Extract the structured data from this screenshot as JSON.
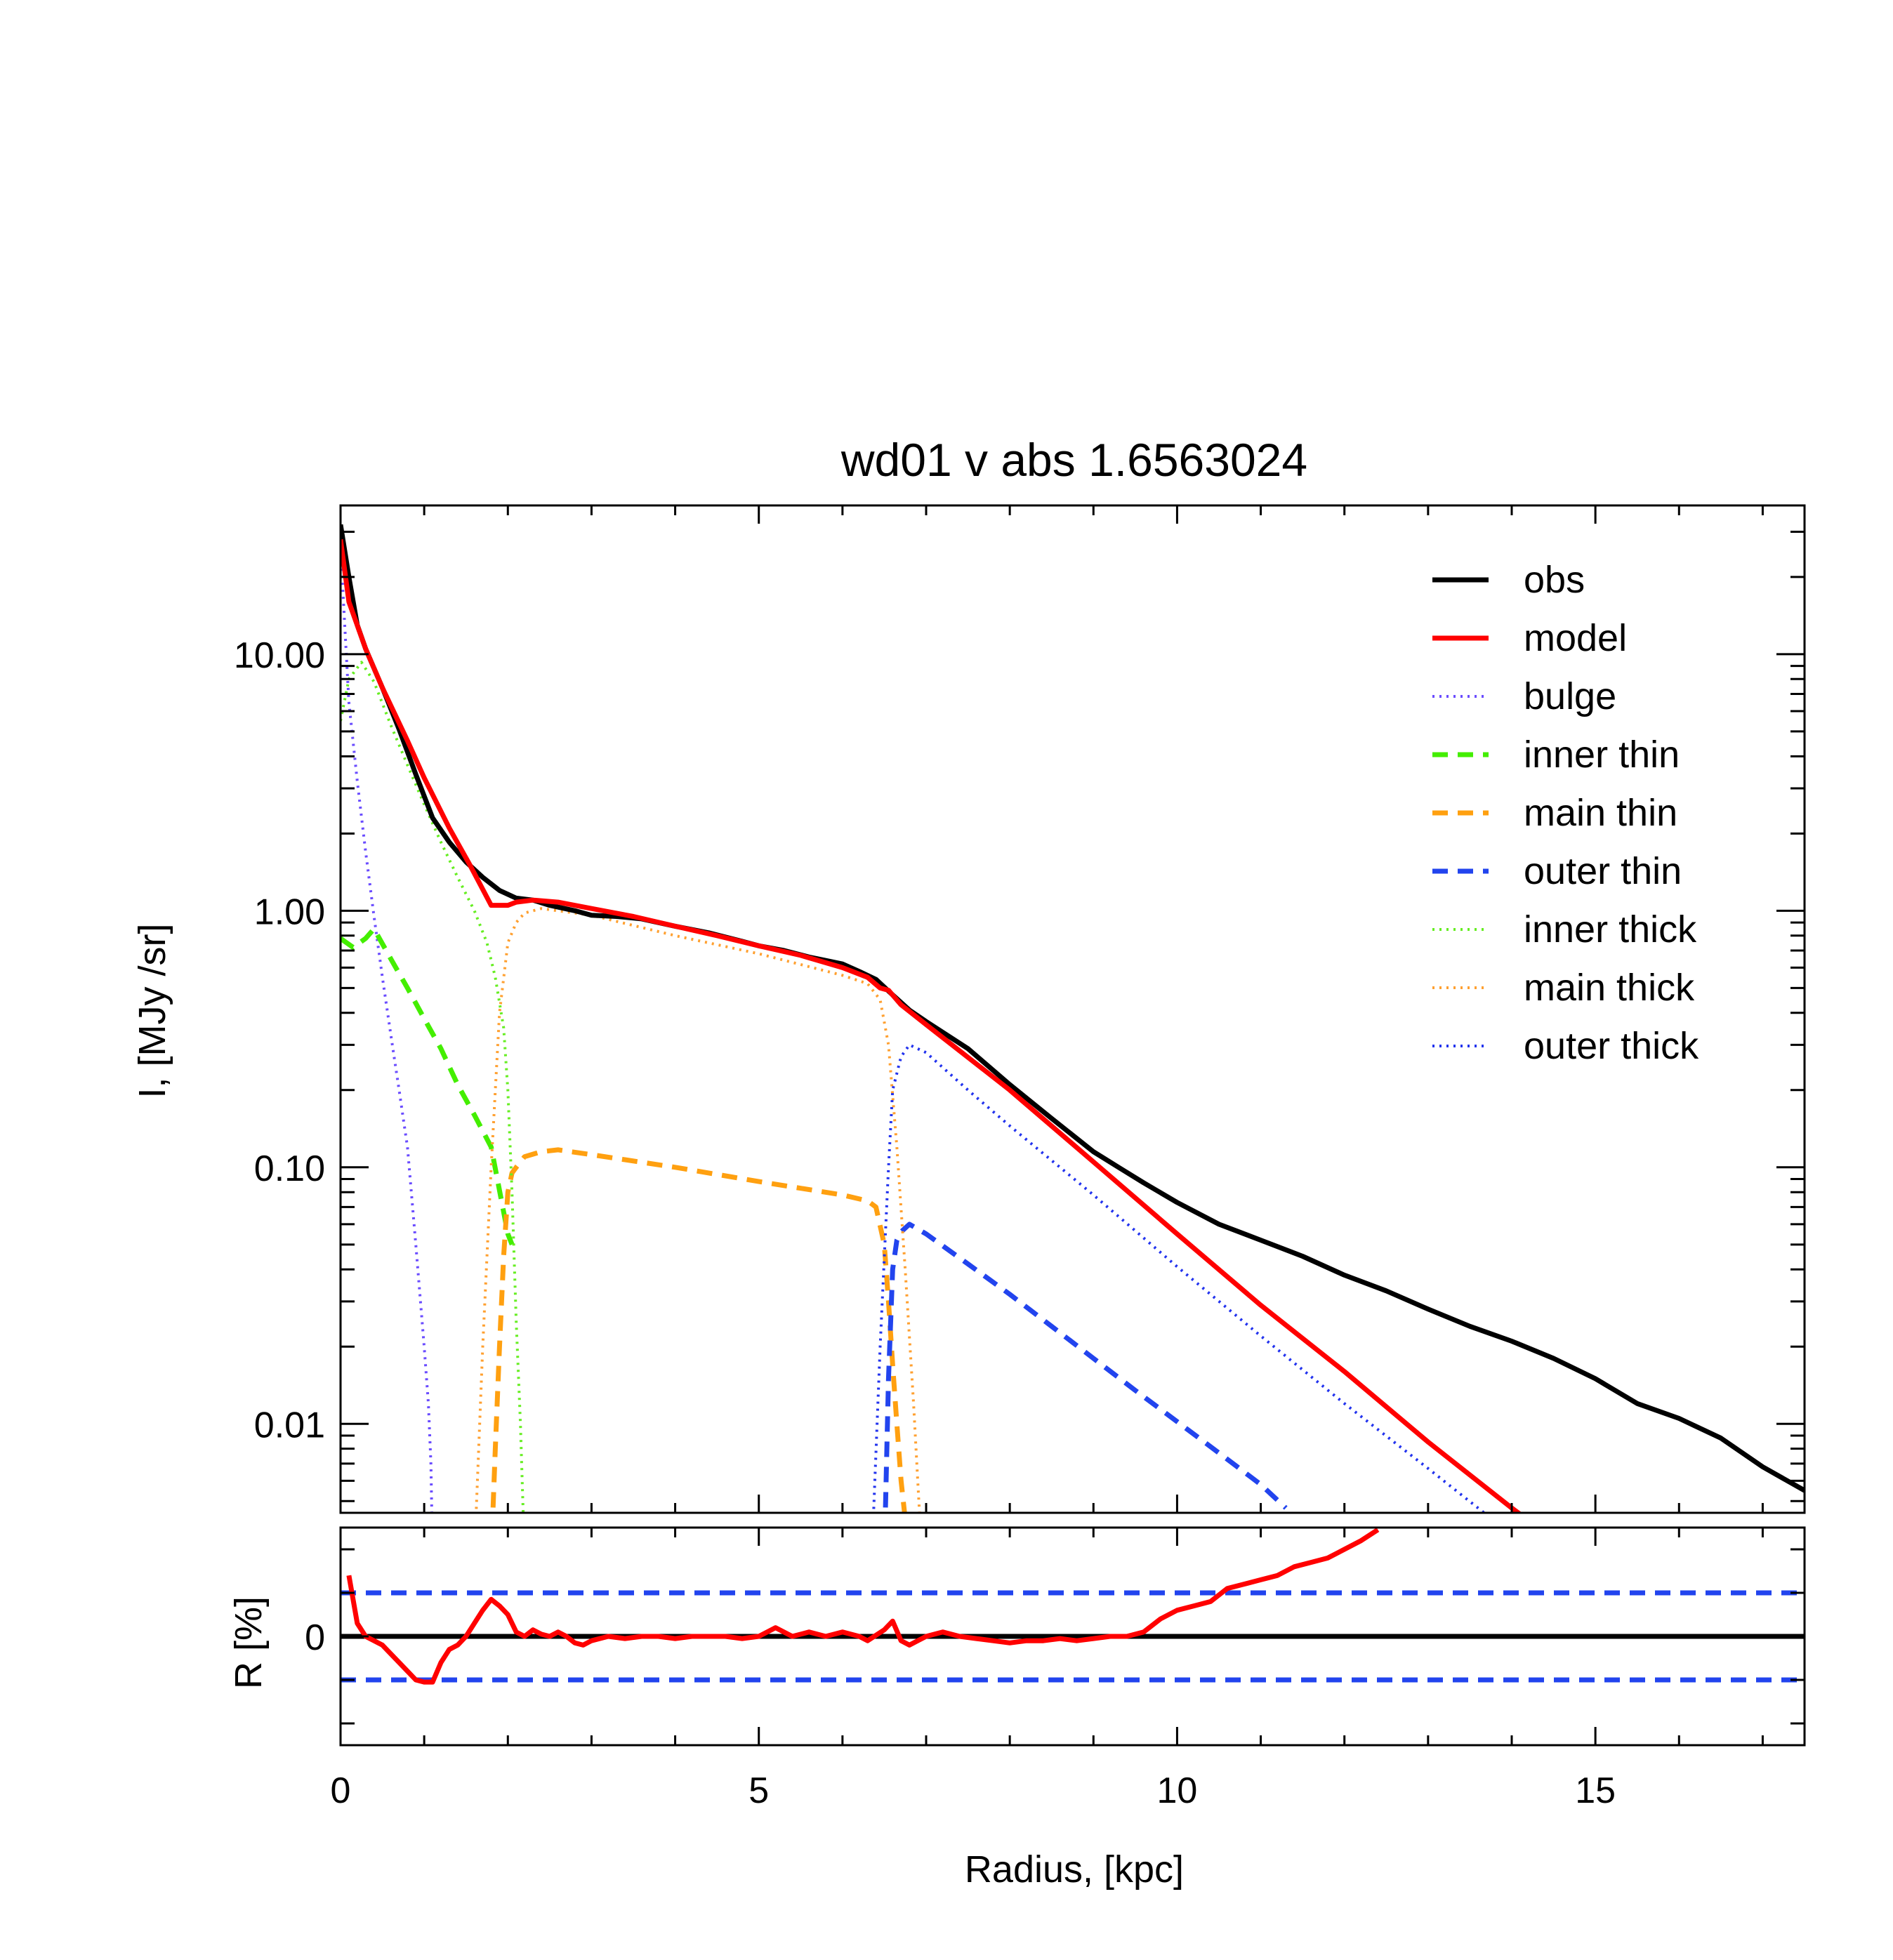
{
  "chart_data": [
    {
      "type": "line",
      "title": "wd01 v abs 1.6563024",
      "xlabel": "",
      "ylabel": "I, [MJy /sr]",
      "xlim": [
        0,
        17.5
      ],
      "ylim": [
        0.0045,
        38
      ],
      "y_scale": "log",
      "x_ticks": [
        0,
        5,
        10,
        15
      ],
      "y_ticks": [
        0.01,
        0.1,
        1,
        10
      ],
      "y_tick_labels": [
        "0.01",
        "0.10",
        "1.00",
        "10.00"
      ],
      "legend_position": "top-right",
      "grid": false,
      "series": [
        {
          "name": "obs",
          "color": "#000000",
          "style": "solid",
          "x": [
            0,
            0.1,
            0.2,
            0.3,
            0.5,
            0.7,
            0.9,
            1.1,
            1.3,
            1.5,
            1.7,
            1.9,
            2.1,
            2.3,
            2.5,
            2.8,
            3.0,
            3.3,
            3.6,
            4.0,
            4.4,
            4.8,
            5.0,
            5.3,
            5.6,
            5.8,
            6.0,
            6.2,
            6.4,
            6.6,
            6.8,
            7.0,
            7.5,
            8.0,
            8.5,
            9.0,
            9.3,
            9.6,
            10.0,
            10.5,
            11.0,
            11.5,
            12.0,
            12.5,
            13.0,
            13.5,
            14.0,
            14.5,
            15.0,
            15.5,
            16.0,
            16.5,
            17.0,
            17.5
          ],
          "y": [
            32,
            20,
            13,
            10.5,
            7.4,
            5.1,
            3.4,
            2.3,
            1.85,
            1.55,
            1.35,
            1.2,
            1.12,
            1.1,
            1.05,
            1.0,
            0.96,
            0.95,
            0.93,
            0.87,
            0.82,
            0.76,
            0.73,
            0.7,
            0.66,
            0.64,
            0.62,
            0.58,
            0.54,
            0.47,
            0.41,
            0.37,
            0.29,
            0.21,
            0.155,
            0.115,
            0.1,
            0.087,
            0.073,
            0.06,
            0.052,
            0.045,
            0.038,
            0.033,
            0.028,
            0.024,
            0.021,
            0.018,
            0.015,
            0.012,
            0.0105,
            0.0088,
            0.0068,
            0.0055
          ]
        },
        {
          "name": "model",
          "color": "#ff0000",
          "style": "solid",
          "x": [
            0,
            0.1,
            0.3,
            0.5,
            0.8,
            1.0,
            1.3,
            1.55,
            1.8,
            2.0,
            2.1,
            2.3,
            2.6,
            3.0,
            3.5,
            4.0,
            4.5,
            5.0,
            5.5,
            6.0,
            6.3,
            6.45,
            6.55,
            6.7,
            7.0,
            8.0,
            9.0,
            10.0,
            11.0,
            12.0,
            13.0,
            14.0,
            14.8
          ],
          "y": [
            28,
            16,
            10.5,
            7.4,
            4.6,
            3.3,
            2.1,
            1.5,
            1.05,
            1.05,
            1.08,
            1.1,
            1.08,
            1.02,
            0.95,
            0.87,
            0.8,
            0.73,
            0.67,
            0.6,
            0.55,
            0.5,
            0.49,
            0.43,
            0.36,
            0.2,
            0.105,
            0.055,
            0.029,
            0.016,
            0.0085,
            0.0047,
            0.003
          ]
        },
        {
          "name": "bulge",
          "color": "#6a4cff",
          "style": "dotted",
          "x": [
            0,
            0.1,
            0.2,
            0.3,
            0.4,
            0.5,
            0.6,
            0.7,
            0.8,
            0.9,
            1.0,
            1.05,
            1.08,
            1.1
          ],
          "y": [
            26,
            6.5,
            3.2,
            1.7,
            0.95,
            0.55,
            0.33,
            0.2,
            0.12,
            0.05,
            0.02,
            0.012,
            0.007,
            0.003
          ]
        },
        {
          "name": "inner thin",
          "color": "#44ee00",
          "style": "dashed",
          "x": [
            0,
            0.15,
            0.3,
            0.4,
            0.6,
            0.8,
            1.0,
            1.2,
            1.4,
            1.6,
            1.8,
            2.0,
            2.05
          ],
          "y": [
            0.78,
            0.72,
            0.78,
            0.85,
            0.65,
            0.5,
            0.38,
            0.29,
            0.21,
            0.16,
            0.12,
            0.055,
            0.05
          ]
        },
        {
          "name": "main thin",
          "color": "#ffa010",
          "style": "dashed",
          "x": [
            1.8,
            1.85,
            1.9,
            1.95,
            2.0,
            2.05,
            2.1,
            2.2,
            2.4,
            2.6,
            3.0,
            4.0,
            5.0,
            6.0,
            6.3,
            6.4,
            6.5,
            6.55,
            6.6,
            6.65,
            6.7,
            6.8
          ],
          "y": [
            0.003,
            0.008,
            0.02,
            0.045,
            0.08,
            0.095,
            0.1,
            0.11,
            0.115,
            0.117,
            0.112,
            0.1,
            0.088,
            0.078,
            0.074,
            0.07,
            0.05,
            0.03,
            0.017,
            0.01,
            0.006,
            0.003
          ]
        },
        {
          "name": "outer thin",
          "color": "#2244ee",
          "style": "dashed",
          "x": [
            6.5,
            6.55,
            6.6,
            6.65,
            6.7,
            6.8,
            7.0,
            7.5,
            8.0,
            8.5,
            9.0,
            9.5,
            10.0,
            10.5,
            11.0,
            11.3
          ],
          "y": [
            0.003,
            0.015,
            0.04,
            0.052,
            0.056,
            0.06,
            0.055,
            0.042,
            0.032,
            0.024,
            0.018,
            0.0135,
            0.0102,
            0.0077,
            0.0058,
            0.0047
          ]
        },
        {
          "name": "inner thick",
          "color": "#66ee22",
          "style": "dotted",
          "x": [
            0,
            0.1,
            0.25,
            0.4,
            0.6,
            0.8,
            1.0,
            1.2,
            1.4,
            1.6,
            1.75,
            1.85,
            1.95,
            2.0,
            2.05,
            2.1,
            2.15,
            2.2
          ],
          "y": [
            5.5,
            8.0,
            9.3,
            7.8,
            5.3,
            3.7,
            2.6,
            1.85,
            1.35,
            1.0,
            0.75,
            0.55,
            0.35,
            0.2,
            0.08,
            0.025,
            0.01,
            0.003
          ]
        },
        {
          "name": "main thick",
          "color": "#ffa030",
          "style": "dotted",
          "x": [
            1.6,
            1.7,
            1.8,
            1.9,
            2.0,
            2.1,
            2.2,
            2.4,
            3.0,
            4.0,
            5.0,
            6.0,
            6.3,
            6.45,
            6.55,
            6.65,
            6.75,
            6.85,
            6.95
          ],
          "y": [
            0.003,
            0.02,
            0.1,
            0.4,
            0.75,
            0.9,
            0.98,
            1.02,
            0.96,
            0.8,
            0.68,
            0.56,
            0.52,
            0.45,
            0.3,
            0.12,
            0.04,
            0.012,
            0.003
          ]
        },
        {
          "name": "outer thick",
          "color": "#2233ee",
          "style": "dotted",
          "x": [
            6.35,
            6.45,
            6.55,
            6.6,
            6.7,
            6.8,
            7.0,
            7.5,
            8.0,
            9.0,
            10.0,
            11.0,
            12.0,
            13.0,
            14.0,
            14.7
          ],
          "y": [
            0.003,
            0.02,
            0.1,
            0.2,
            0.27,
            0.3,
            0.28,
            0.2,
            0.145,
            0.078,
            0.041,
            0.022,
            0.012,
            0.0067,
            0.0037,
            0.003
          ]
        }
      ]
    },
    {
      "type": "line",
      "title": "",
      "xlabel": "Radius, [kpc]",
      "ylabel": "R [%]",
      "xlim": [
        0,
        17.5
      ],
      "ylim": [
        -25,
        25
      ],
      "x_ticks": [
        0,
        5,
        10,
        15
      ],
      "x_tick_labels": [
        "0",
        "5",
        "10",
        "15"
      ],
      "y_ticks": [
        0
      ],
      "y_tick_labels": [
        "0"
      ],
      "grid": false,
      "reference_lines": [
        {
          "y": 0,
          "color": "#000000",
          "style": "solid"
        },
        {
          "y": 10,
          "color": "#2244ee",
          "style": "dashed"
        },
        {
          "y": -10,
          "color": "#2244ee",
          "style": "dashed"
        }
      ],
      "series": [
        {
          "name": "",
          "color": "#ff0000",
          "style": "solid",
          "x": [
            0.1,
            0.2,
            0.3,
            0.5,
            0.6,
            0.7,
            0.8,
            0.9,
            1.0,
            1.1,
            1.2,
            1.3,
            1.4,
            1.5,
            1.6,
            1.7,
            1.8,
            1.9,
            2.0,
            2.1,
            2.2,
            2.3,
            2.4,
            2.5,
            2.6,
            2.7,
            2.8,
            2.9,
            3.0,
            3.2,
            3.4,
            3.6,
            3.8,
            4.0,
            4.2,
            4.4,
            4.6,
            4.8,
            5.0,
            5.2,
            5.4,
            5.6,
            5.8,
            6.0,
            6.2,
            6.3,
            6.5,
            6.6,
            6.7,
            6.8,
            6.9,
            7.0,
            7.2,
            7.4,
            7.6,
            7.8,
            8.0,
            8.2,
            8.4,
            8.6,
            8.8,
            9.0,
            9.2,
            9.4,
            9.6,
            9.8,
            10.0,
            10.2,
            10.4,
            10.6,
            10.8,
            11.0,
            11.2,
            11.4,
            11.6,
            11.8,
            12.0,
            12.2,
            12.4
          ],
          "y": [
            14,
            3,
            0,
            -2,
            -4,
            -6,
            -8,
            -10,
            -10.5,
            -10.5,
            -6,
            -3,
            -2,
            0,
            3,
            6,
            8.5,
            7,
            5,
            1,
            0,
            1.5,
            0.5,
            0,
            1,
            0,
            -1.5,
            -2,
            -1,
            0,
            -0.5,
            0,
            0,
            -0.5,
            0,
            0,
            0,
            -0.5,
            0,
            2,
            0,
            1,
            0,
            1,
            0,
            -1,
            1.5,
            3.5,
            -1,
            -2,
            -1,
            0,
            1,
            0,
            -0.5,
            -1,
            -1.5,
            -1,
            -1,
            -0.5,
            -1,
            -0.5,
            0,
            0,
            1,
            4,
            6,
            7,
            8,
            11,
            12,
            13,
            14,
            16,
            17,
            18,
            20,
            22,
            24.5
          ]
        }
      ]
    }
  ]
}
